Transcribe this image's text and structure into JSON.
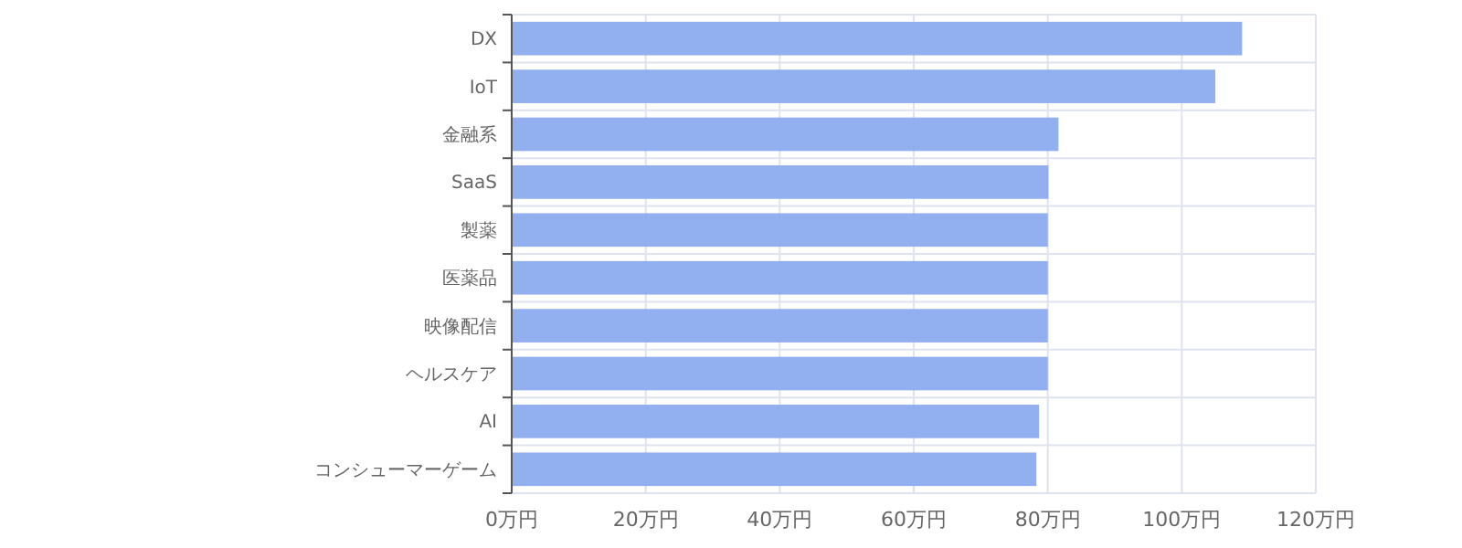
{
  "chart_data": {
    "type": "bar",
    "orientation": "horizontal",
    "categories": [
      "DX",
      "IoT",
      "金融系",
      "SaaS",
      "製薬",
      "医薬品",
      "映像配信",
      "ヘルスケア",
      "AI",
      "コンシューマーゲーム"
    ],
    "values": [
      109,
      105,
      81.6,
      80.1,
      80,
      80,
      80,
      80,
      78.7,
      78.3
    ],
    "color": "#8cabee",
    "xlim": [
      0,
      120
    ],
    "xticks": [
      {
        "value": 0,
        "label": "0万円"
      },
      {
        "value": 20,
        "label": "20万円"
      },
      {
        "value": 40,
        "label": "40万円"
      },
      {
        "value": 60,
        "label": "60万円"
      },
      {
        "value": 80,
        "label": "80万円"
      },
      {
        "value": 100,
        "label": "100万円"
      },
      {
        "value": 120,
        "label": "120万円"
      }
    ],
    "grid": true
  }
}
